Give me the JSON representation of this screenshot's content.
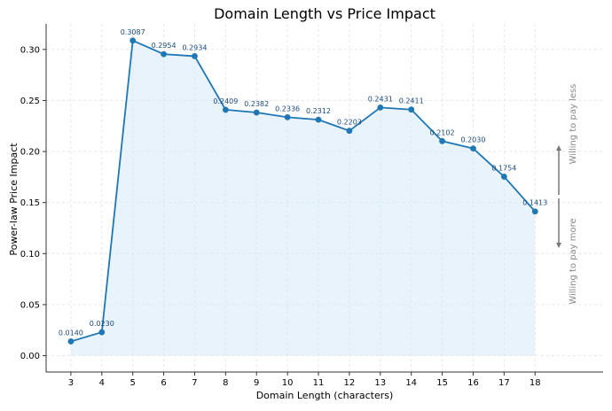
{
  "chart_data": {
    "type": "line",
    "title": "Domain Length vs Price Impact",
    "xlabel": "Domain Length (characters)",
    "ylabel": "Power-law Price Impact",
    "x": [
      3,
      4,
      5,
      6,
      7,
      8,
      9,
      10,
      11,
      12,
      13,
      14,
      15,
      16,
      17,
      18
    ],
    "y": [
      0.014,
      0.023,
      0.3087,
      0.2954,
      0.2934,
      0.2409,
      0.2382,
      0.2336,
      0.2312,
      0.2203,
      0.2431,
      0.2411,
      0.2102,
      0.203,
      0.1754,
      0.1413
    ],
    "point_labels": [
      "0.0140",
      "0.0230",
      "0.3087",
      "0.2954",
      "0.2934",
      "0.2409",
      "0.2382",
      "0.2336",
      "0.2312",
      "0.2203",
      "0.2431",
      "0.2411",
      "0.2102",
      "0.2030",
      "0.1754",
      "0.1413"
    ],
    "x_ticks": [
      "3",
      "4",
      "5",
      "6",
      "7",
      "8",
      "9",
      "10",
      "11",
      "12",
      "13",
      "14",
      "15",
      "16",
      "17",
      "18"
    ],
    "y_ticks": [
      "0.00",
      "0.05",
      "0.10",
      "0.15",
      "0.20",
      "0.25",
      "0.30"
    ],
    "xlim": [
      2.2,
      20.2
    ],
    "ylim": [
      -0.016,
      0.325
    ],
    "grid": true,
    "area_fill": true,
    "annotations": {
      "upper": "Willing to pay less",
      "lower": "Willing to pay more"
    },
    "colors": {
      "line": "#1f77b4",
      "fill": "#d6eaf8",
      "label": "#1a4a7a",
      "annotation": "#888888",
      "grid": "#e6e6e6"
    }
  }
}
